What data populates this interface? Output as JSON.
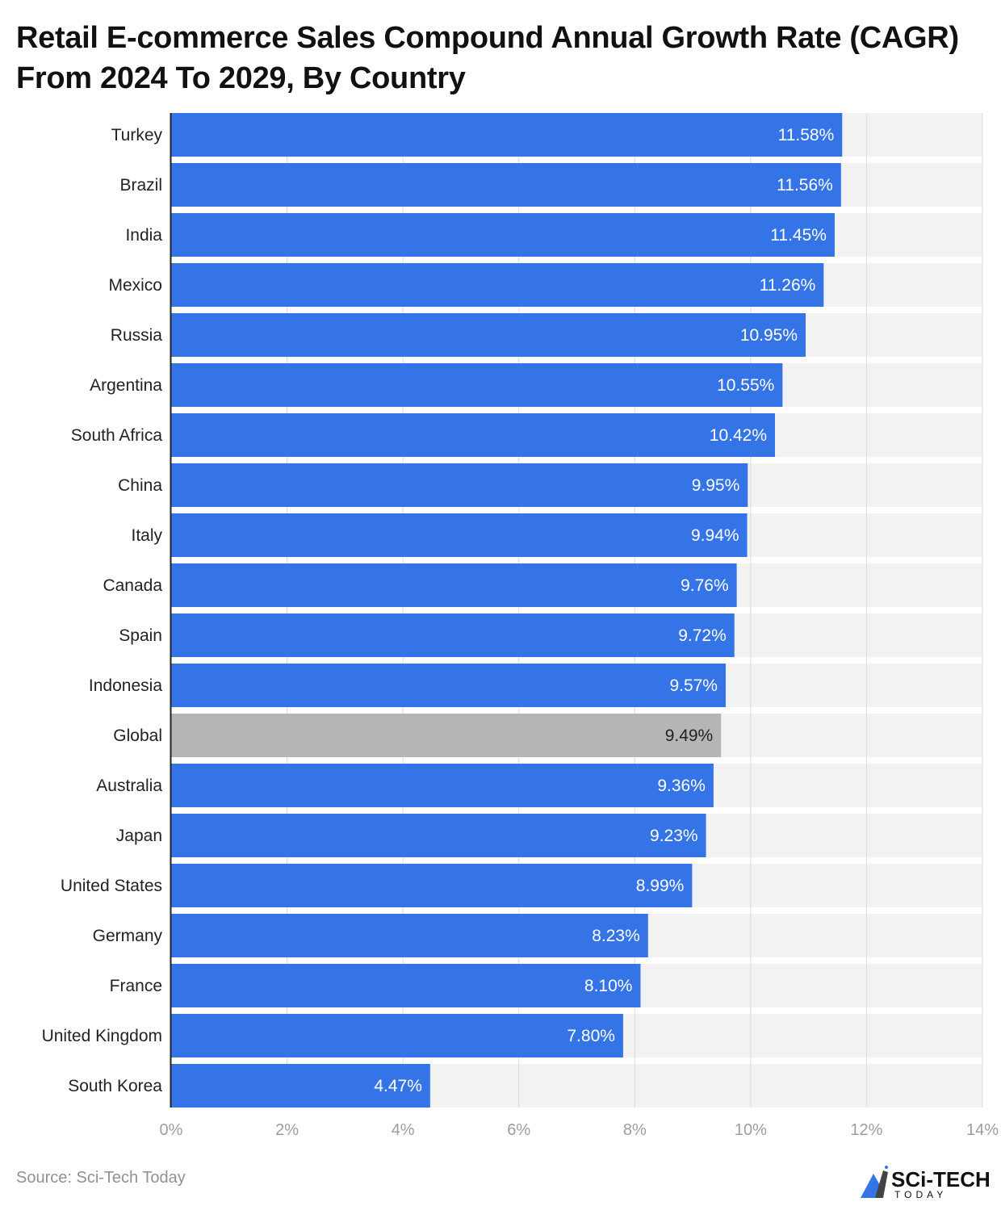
{
  "chart_data": {
    "type": "bar",
    "orientation": "horizontal",
    "title": "Retail E-commerce Sales Compound Annual Growth Rate (CAGR) From 2024 To 2029, By Country",
    "categories": [
      "Turkey",
      "Brazil",
      "India",
      "Mexico",
      "Russia",
      "Argentina",
      "South Africa",
      "China",
      "Italy",
      "Canada",
      "Spain",
      "Indonesia",
      "Global",
      "Australia",
      "Japan",
      "United States",
      "Germany",
      "France",
      "United Kingdom",
      "South Korea"
    ],
    "values": [
      11.58,
      11.56,
      11.45,
      11.26,
      10.95,
      10.55,
      10.42,
      9.95,
      9.94,
      9.76,
      9.72,
      9.57,
      9.49,
      9.36,
      9.23,
      8.99,
      8.23,
      8.1,
      7.8,
      4.47
    ],
    "data_labels": [
      "11.58%",
      "11.56%",
      "11.45%",
      "11.26%",
      "10.95%",
      "10.55%",
      "10.42%",
      "9.95%",
      "9.94%",
      "9.76%",
      "9.72%",
      "9.57%",
      "9.49%",
      "9.36%",
      "9.23%",
      "8.99%",
      "8.23%",
      "8.10%",
      "7.80%",
      "4.47%"
    ],
    "xlim": [
      0,
      14
    ],
    "xticks": [
      0,
      2,
      4,
      6,
      8,
      10,
      12,
      14
    ],
    "xtick_labels": [
      "0%",
      "2%",
      "4%",
      "6%",
      "8%",
      "10%",
      "12%",
      "14%"
    ],
    "grid": true,
    "highlight_category": "Global",
    "colors": {
      "bar": "#3474e6",
      "highlight": "#b4b5b7",
      "track": "#f2f2f2",
      "grid": "#dcdcdc"
    }
  },
  "source": "Source: Sci-Tech Today",
  "logo": {
    "text_main": "SCi-TECH",
    "text_sub": "TODAY"
  }
}
